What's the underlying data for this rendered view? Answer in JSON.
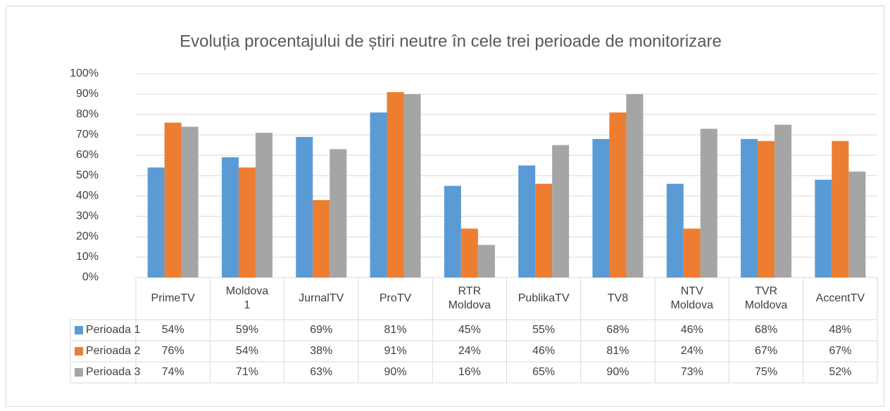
{
  "chart_data": {
    "type": "bar",
    "title": "Evoluția procentajului de știri neutre în cele trei perioade de monitorizare",
    "categories": [
      "PrimeTV",
      "Moldova\n1",
      "JurnalTV",
      "ProTV",
      "RTR\nMoldova",
      "PublikaTV",
      "TV8",
      "NTV\nMoldova",
      "TVR\nMoldova",
      "AccentTV"
    ],
    "series": [
      {
        "name": "Perioada 1",
        "color": "#5b9bd5",
        "values": [
          54,
          59,
          69,
          81,
          45,
          55,
          68,
          46,
          68,
          48
        ],
        "value_labels": [
          "54%",
          "59%",
          "69%",
          "81%",
          "45%",
          "55%",
          "68%",
          "46%",
          "68%",
          "48%"
        ]
      },
      {
        "name": "Perioada 2",
        "color": "#ed7d31",
        "values": [
          76,
          54,
          38,
          91,
          24,
          46,
          81,
          24,
          67,
          67
        ],
        "value_labels": [
          "76%",
          "54%",
          "38%",
          "91%",
          "24%",
          "46%",
          "81%",
          "24%",
          "67%",
          "67%"
        ]
      },
      {
        "name": "Perioada 3",
        "color": "#a5a5a5",
        "values": [
          74,
          71,
          63,
          90,
          16,
          65,
          90,
          73,
          75,
          52
        ],
        "value_labels": [
          "74%",
          "71%",
          "63%",
          "90%",
          "16%",
          "65%",
          "90%",
          "73%",
          "75%",
          "52%"
        ]
      }
    ],
    "ylim": [
      0,
      100
    ],
    "yticks": [
      {
        "value": 0,
        "label": "0%"
      },
      {
        "value": 10,
        "label": "10%"
      },
      {
        "value": 20,
        "label": "20%"
      },
      {
        "value": 30,
        "label": "30%"
      },
      {
        "value": 40,
        "label": "40%"
      },
      {
        "value": 50,
        "label": "50%"
      },
      {
        "value": 60,
        "label": "60%"
      },
      {
        "value": 70,
        "label": "70%"
      },
      {
        "value": 80,
        "label": "80%"
      },
      {
        "value": 90,
        "label": "90%"
      },
      {
        "value": 100,
        "label": "100%"
      }
    ],
    "grid": true
  }
}
